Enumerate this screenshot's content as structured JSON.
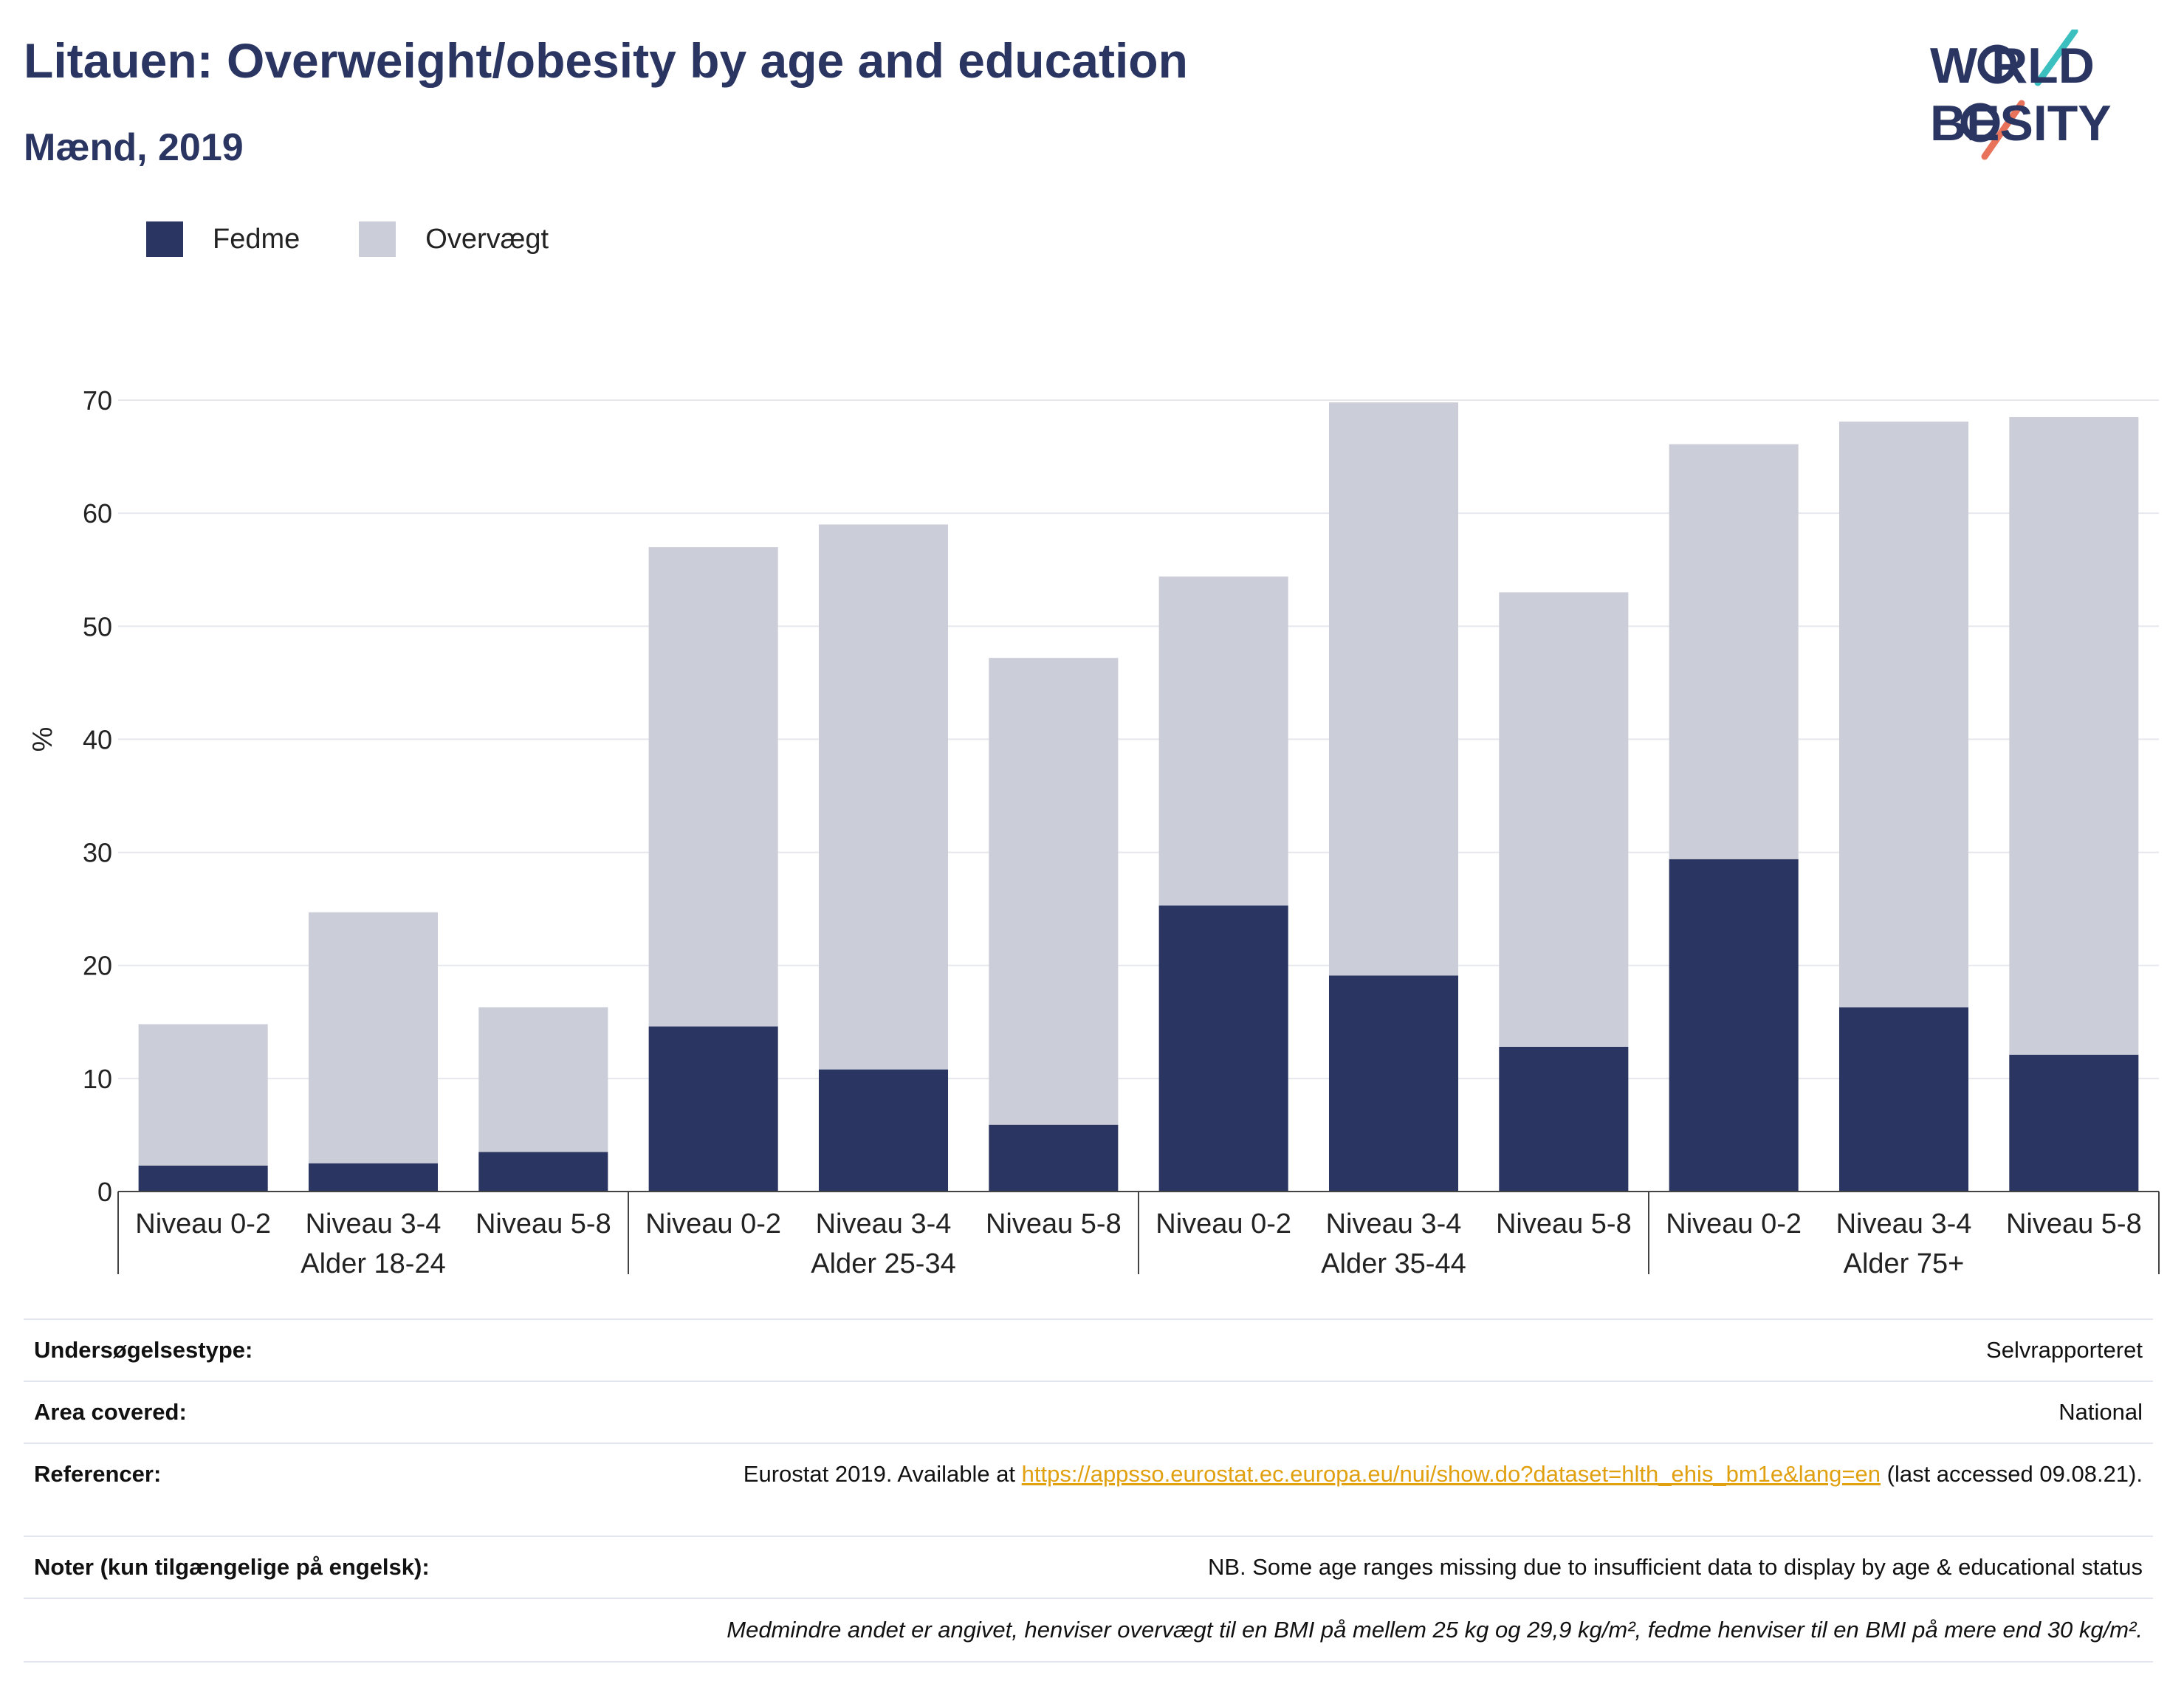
{
  "header": {
    "title": "Litauen: Overweight/obesity by age and education",
    "subtitle": "Mænd, 2019"
  },
  "logo": {
    "line1": "W RLD",
    "line2": "BESITY",
    "text": "WORLD OBESITY"
  },
  "colors": {
    "fedme": "#2a3562",
    "overvaegt": "#cbcdd8",
    "accent_teal": "#3cbfbf",
    "accent_red": "#e8735a"
  },
  "legend": [
    {
      "label": "Fedme",
      "color": "#2a3562"
    },
    {
      "label": "Overvægt",
      "color": "#cbcdd8"
    }
  ],
  "chart_data": {
    "type": "bar",
    "stacked": true,
    "ylabel": "%",
    "ylim": [
      0,
      70
    ],
    "yticks": [
      0,
      10,
      20,
      30,
      40,
      50,
      60,
      70
    ],
    "grid": true,
    "legend_position": "top-left",
    "groups": [
      "Alder 18-24",
      "Alder 25-34",
      "Alder 35-44",
      "Alder 75+"
    ],
    "categories": [
      "Niveau 0-2",
      "Niveau 3-4",
      "Niveau 5-8"
    ],
    "series": [
      {
        "name": "Fedme",
        "values": [
          [
            2.3,
            2.5,
            3.5
          ],
          [
            14.6,
            10.8,
            5.9
          ],
          [
            25.3,
            19.1,
            12.8
          ],
          [
            29.4,
            16.3,
            12.1
          ]
        ]
      },
      {
        "name": "Overvægt",
        "values": [
          [
            12.5,
            22.2,
            12.8
          ],
          [
            42.4,
            48.2,
            41.3
          ],
          [
            29.1,
            50.7,
            40.2
          ],
          [
            36.7,
            51.8,
            56.4
          ]
        ]
      }
    ]
  },
  "info": {
    "survey_label": "Undersøgelsestype:",
    "survey_value": "Selvrapporteret",
    "area_label": "Area covered:",
    "area_value": "National",
    "refs_label": "Referencer:",
    "refs_prefix": "Eurostat 2019. Available at ",
    "refs_link": "https://appsso.eurostat.ec.europa.eu/nui/show.do?dataset=hlth_ehis_bm1e&lang=en",
    "refs_suffix": " (last accessed 09.08.21).",
    "notes_label": "Noter (kun tilgængelige på engelsk):",
    "notes_value": "NB. Some age ranges missing due to insufficient data to display by age & educational status",
    "footnote": "Medmindre andet er angivet, henviser overvægt til en BMI på mellem 25 kg og 29,9 kg/m², fedme henviser til en BMI på mere end 30 kg/m²."
  }
}
